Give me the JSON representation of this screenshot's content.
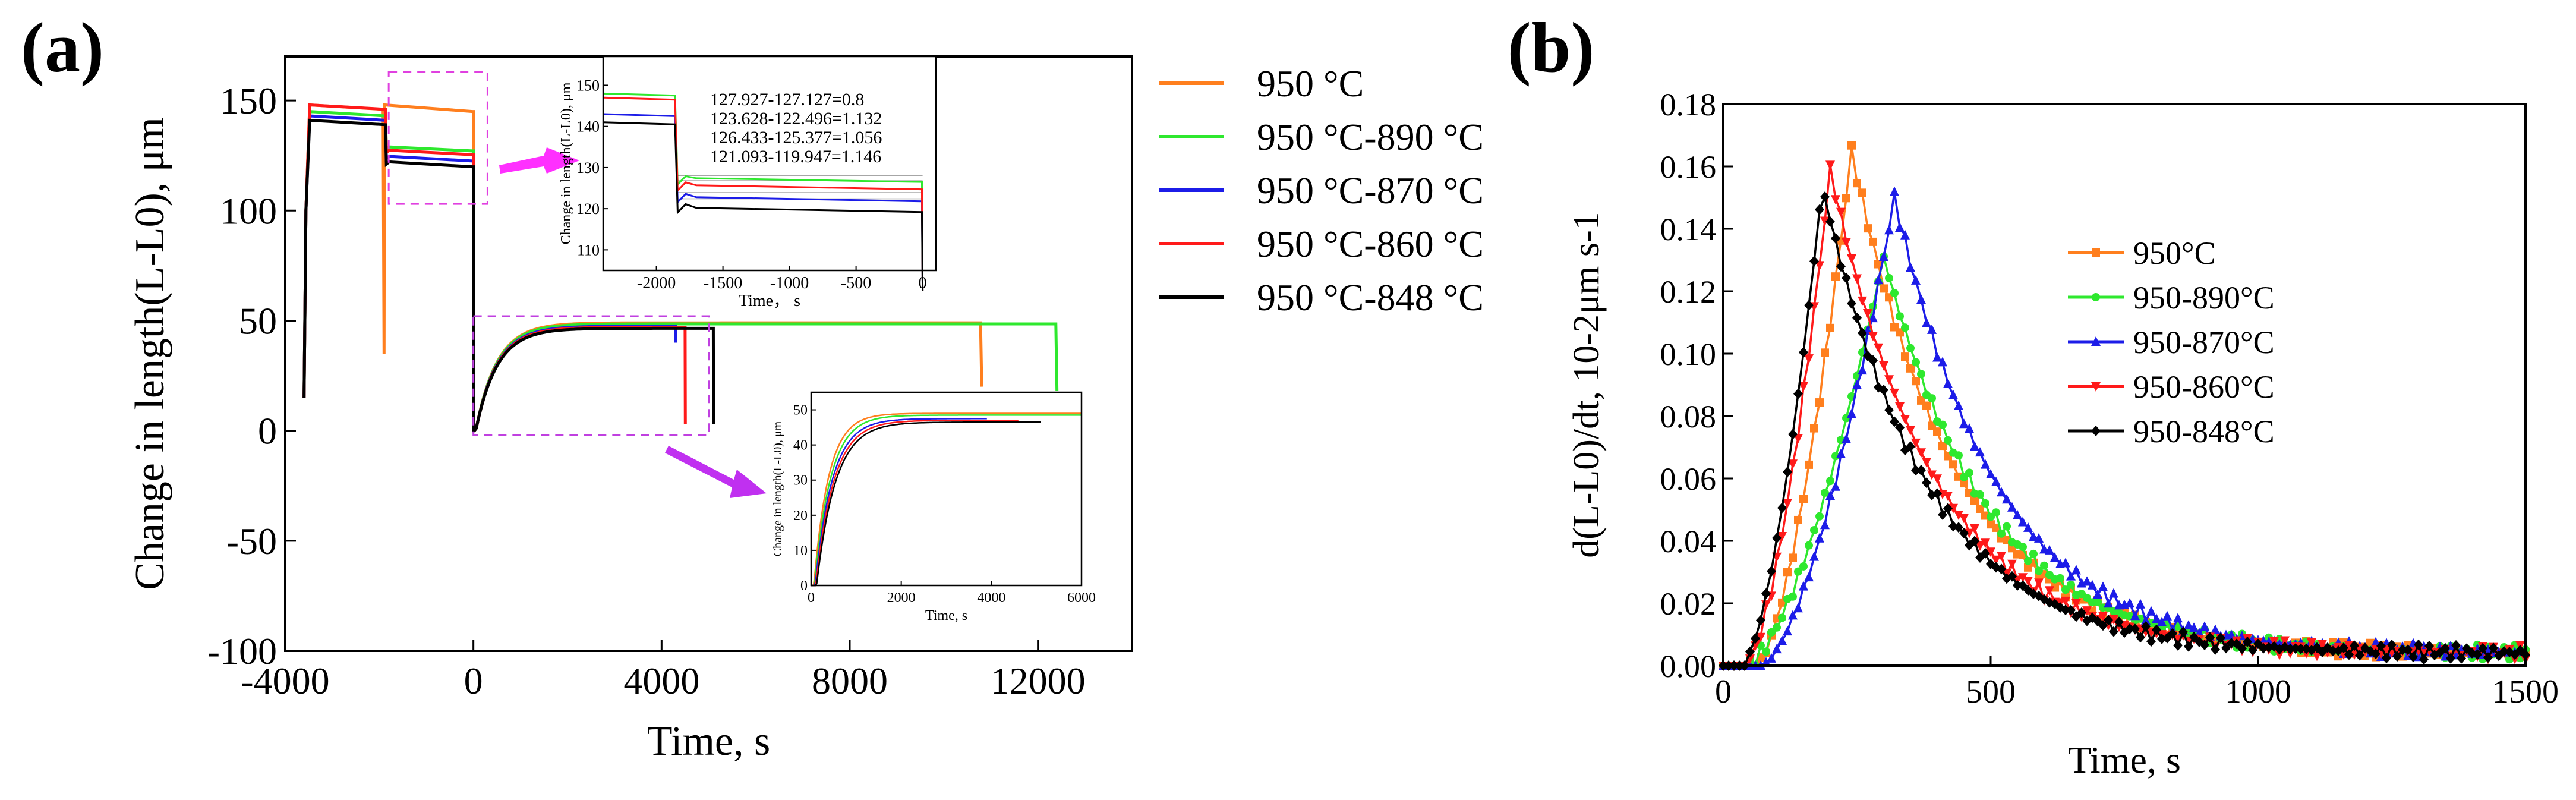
{
  "chart_data": [
    {
      "id": "a",
      "panel_label": "(a)",
      "type": "line",
      "title": "",
      "xlabel": "Time, s",
      "ylabel": "Change in length(L-L0), μm",
      "xlim": [
        -4000,
        14000
      ],
      "ylim": [
        -100,
        170
      ],
      "xticks": [
        "-4000",
        "0",
        "4000",
        "8000",
        "12000"
      ],
      "xtick_values": [
        -4000,
        0,
        4000,
        8000,
        12000
      ],
      "yticks": [
        "-100",
        "-50",
        "0",
        "50",
        "100",
        "150"
      ],
      "ytick_values": [
        -100,
        -50,
        0,
        50,
        100,
        150
      ],
      "legend_position": "outside-right",
      "series": [
        {
          "name": "950 °C",
          "color": "#ff7f1e",
          "austenitize_end": -1900,
          "drop_to": 35,
          "step_level": 148,
          "hold_level": 145,
          "plateau": 49,
          "end_time": 10800,
          "end_drop": 20
        },
        {
          "name": "950 °C-890 °C",
          "color": "#2ee82e",
          "austenitize_end": -1850,
          "drop_to": 127.9,
          "step_level": 145,
          "hold_level": 127.1,
          "plateau": 48.5,
          "end_time": 12400,
          "end_drop": 18
        },
        {
          "name": "950 °C-870 °C",
          "color": "#1c1ce8",
          "austenitize_end": -1850,
          "drop_to": 123.6,
          "step_level": 143,
          "hold_level": 122.5,
          "plateau": 47.5,
          "end_time": 4300,
          "end_drop": 40
        },
        {
          "name": "950 °C-860 °C",
          "color": "#ff1a1a",
          "austenitize_end": -1850,
          "drop_to": 126.4,
          "step_level": 148,
          "hold_level": 125.4,
          "plateau": 47,
          "end_time": 4500,
          "end_drop": 3
        },
        {
          "name": "950 °C-848 °C",
          "color": "#000000",
          "austenitize_end": -1850,
          "drop_to": 121.1,
          "step_level": 141,
          "hold_level": 119.9,
          "plateau": 46.5,
          "end_time": 5100,
          "end_drop": 3
        }
      ],
      "annotations": [
        "127.927-127.127=0.8",
        "123.628-122.496=1.132",
        "126.433-125.377=1.056",
        "121.093-119.947=1.146"
      ],
      "annotation_colors": [
        "#1ec81e",
        "#1c1ce8",
        "#ff1a1a",
        "#000000"
      ],
      "insets": [
        {
          "id": "inset-top",
          "xlabel": "Time， s",
          "ylabel": "Change in length(L-L0), μm",
          "xlim": [
            -2400,
            100
          ],
          "ylim": [
            105,
            157
          ],
          "xticks": [
            "-2000",
            "-1500",
            "-1000",
            "-500",
            "0"
          ],
          "xtick_values": [
            -2000,
            -1500,
            -1000,
            -500,
            0
          ],
          "yticks": [
            "110",
            "120",
            "130",
            "140",
            "150"
          ],
          "ytick_values": [
            110,
            120,
            130,
            140,
            150
          ]
        },
        {
          "id": "inset-bottom",
          "xlabel": "Time, s",
          "ylabel": "Change in length(L-L0), μm",
          "xlim": [
            0,
            6000
          ],
          "ylim": [
            0,
            55
          ],
          "xticks": [
            "0",
            "2000",
            "4000",
            "6000"
          ],
          "xtick_values": [
            0,
            2000,
            4000,
            6000
          ],
          "yticks": [
            "0",
            "10",
            "20",
            "30",
            "40",
            "50"
          ],
          "ytick_values": [
            0,
            10,
            20,
            30,
            40,
            50
          ]
        }
      ]
    },
    {
      "id": "b",
      "panel_label": "(b)",
      "type": "line",
      "title": "",
      "xlabel": "Time, s",
      "ylabel": "d(L-L0)/dt, 10-2μm s-1",
      "xlim": [
        0,
        1500
      ],
      "ylim": [
        0,
        0.18
      ],
      "xticks": [
        "0",
        "500",
        "1000",
        "1500"
      ],
      "xtick_values": [
        0,
        500,
        1000,
        1500
      ],
      "yticks": [
        "0.00",
        "0.02",
        "0.04",
        "0.06",
        "0.08",
        "0.10",
        "0.12",
        "0.14",
        "0.16",
        "0.18"
      ],
      "ytick_values": [
        0,
        0.02,
        0.04,
        0.06,
        0.08,
        0.1,
        0.12,
        0.14,
        0.16,
        0.18
      ],
      "legend_position": "center-right",
      "series": [
        {
          "name": "950°C",
          "color": "#ff7f1e",
          "marker": "square",
          "peak_time": 240,
          "peak_value": 0.165,
          "onset": 60
        },
        {
          "name": "950-890°C",
          "color": "#2ee82e",
          "marker": "circle",
          "peak_time": 300,
          "peak_value": 0.131,
          "onset": 40
        },
        {
          "name": "950-870°C",
          "color": "#1c1ce8",
          "marker": "triangle-up",
          "peak_time": 320,
          "peak_value": 0.15,
          "onset": 70
        },
        {
          "name": "950-860°C",
          "color": "#ff1a1a",
          "marker": "triangle-down",
          "peak_time": 200,
          "peak_value": 0.159,
          "onset": 40
        },
        {
          "name": "950-848°C",
          "color": "#000000",
          "marker": "diamond",
          "peak_time": 185,
          "peak_value": 0.154,
          "onset": 35
        }
      ]
    }
  ]
}
